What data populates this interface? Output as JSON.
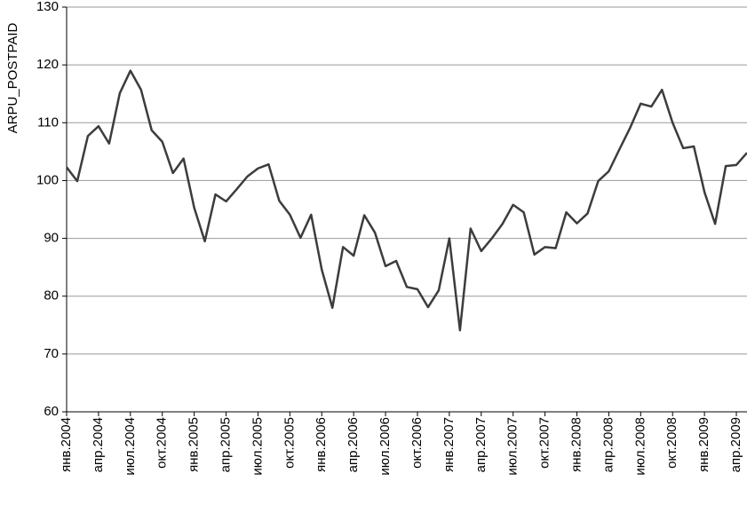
{
  "chart_data": {
    "type": "line",
    "y_label": "ARPU_POSTPAID",
    "categories": [
      "янв.2004",
      null,
      null,
      "апр.2004",
      null,
      null,
      "июл.2004",
      null,
      null,
      "окт.2004",
      null,
      null,
      "янв.2005",
      null,
      null,
      "апр.2005",
      null,
      null,
      "июл.2005",
      null,
      null,
      "окт.2005",
      null,
      null,
      "янв.2006",
      null,
      null,
      "апр.2006",
      null,
      null,
      "июл.2006",
      null,
      null,
      "окт.2006",
      null,
      null,
      "янв.2007",
      null,
      null,
      "апр.2007",
      null,
      null,
      "июл.2007",
      null,
      null,
      "окт.2007",
      null,
      null,
      "янв.2008",
      null,
      null,
      "апр.2008",
      null,
      null,
      "июл.2008",
      null,
      null,
      "окт.2008",
      null,
      null,
      "янв.2009",
      null,
      null,
      "апр.2009",
      null
    ],
    "series": [
      {
        "name": "ARPU_POSTPAID",
        "color": "#3c3c3c",
        "values": [
          102.3,
          99.9,
          107.7,
          109.4,
          106.4,
          115.1,
          119,
          115.7,
          108.7,
          106.7,
          101.3,
          103.8,
          95.3,
          89.5,
          97.6,
          96.4,
          98.5,
          100.7,
          102.1,
          102.8,
          96.5,
          94.1,
          90.1,
          94.1,
          84.6,
          78,
          88.5,
          87,
          94,
          91,
          85.2,
          86.1,
          81.6,
          81.2,
          78.1,
          81,
          90,
          74.1,
          91.7,
          87.8,
          90,
          92.5,
          95.8,
          94.5,
          87.2,
          88.5,
          88.3,
          94.5,
          92.6,
          94.3,
          99.9,
          101.6,
          105.4,
          109.1,
          113.3,
          112.8,
          115.7,
          110,
          105.6,
          105.9,
          98,
          92.5,
          102.5,
          102.7,
          104.8
        ]
      }
    ],
    "ylim": [
      60,
      130
    ],
    "yticks": [
      60,
      70,
      80,
      90,
      100,
      110,
      120,
      130
    ],
    "grid": true
  }
}
